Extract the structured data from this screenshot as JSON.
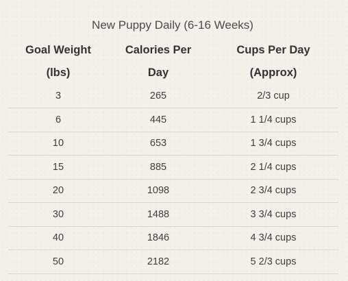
{
  "caption": "New Puppy Daily (6-16 Weeks)",
  "headers": {
    "goal_weight": [
      "Goal Weight",
      "(lbs)"
    ],
    "calories": [
      "Calories Per",
      "Day"
    ],
    "cups": [
      "Cups Per Day",
      "(Approx)"
    ]
  },
  "rows": [
    {
      "weight": "3",
      "calories": "265",
      "cups": "2/3 cup"
    },
    {
      "weight": "6",
      "calories": "445",
      "cups": "1 1/4 cups"
    },
    {
      "weight": "10",
      "calories": "653",
      "cups": "1 3/4 cups"
    },
    {
      "weight": "15",
      "calories": "885",
      "cups": "2 1/4 cups"
    },
    {
      "weight": "20",
      "calories": "1098",
      "cups": "2 3/4 cups"
    },
    {
      "weight": "30",
      "calories": "1488",
      "cups": "3 3/4 cups"
    },
    {
      "weight": "40",
      "calories": "1846",
      "cups": "4 3/4 cups"
    },
    {
      "weight": "50",
      "calories": "2182",
      "cups": "5 2/3 cups"
    }
  ]
}
